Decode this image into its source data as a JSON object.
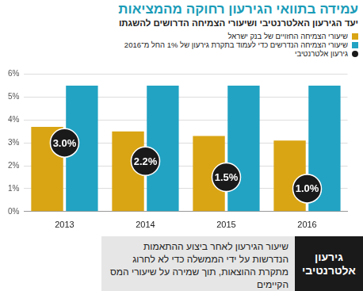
{
  "chart_data": {
    "type": "bar",
    "title": "עמידה בתוואי הגירעון רחוקה מהמציאות",
    "subtitle": "יעד הגירעון האלטרנטיבי ושיעורי הצמיחה הדרושים להשגתו",
    "categories": [
      "2013",
      "2014",
      "2015",
      "2016"
    ],
    "series": [
      {
        "name": "שיעורי הצמיחה החזויים של בנק ישראל",
        "color": "#d9a514",
        "type": "bar",
        "values": [
          3.7,
          3.5,
          3.3,
          3.1
        ]
      },
      {
        "name": "שיעורי הצמיחה הנדרשים כדי לעמוד בתקרת גירעון של 1% החל מ־2016",
        "color": "#22a3c3",
        "type": "bar",
        "values": [
          5.5,
          5.5,
          5.5,
          5.5
        ]
      },
      {
        "name": "גירעון אלטרנטיבי",
        "color": "#1a1a1a",
        "type": "scatter",
        "marker": "circle",
        "data_labels": true,
        "values": [
          3.0,
          2.2,
          1.5,
          1.0
        ],
        "value_labels": [
          "3.0%",
          "2.2%",
          "1.5%",
          "1.0%"
        ]
      }
    ],
    "ylim": [
      0,
      6
    ],
    "yticks": [
      {
        "value": 0,
        "label": "0%"
      },
      {
        "value": 1,
        "label": "1%"
      },
      {
        "value": 2,
        "label": "2%"
      },
      {
        "value": 3,
        "label": "3%"
      },
      {
        "value": 4,
        "label": "4%"
      },
      {
        "value": 5,
        "label": "5%"
      },
      {
        "value": 6,
        "label": "6%"
      }
    ],
    "grid": true,
    "legend": "top",
    "annotations": [
      {
        "label": "גירעון אלטרנטיבי",
        "text": "שיעור הגירעון לאחר ביצוע ההתאמות הנדרשות על ידי הממשלה כדי לא לחרוג מתקרת ההוצאות, תוך שמירה על שיעורי המס הקיימים"
      }
    ]
  }
}
